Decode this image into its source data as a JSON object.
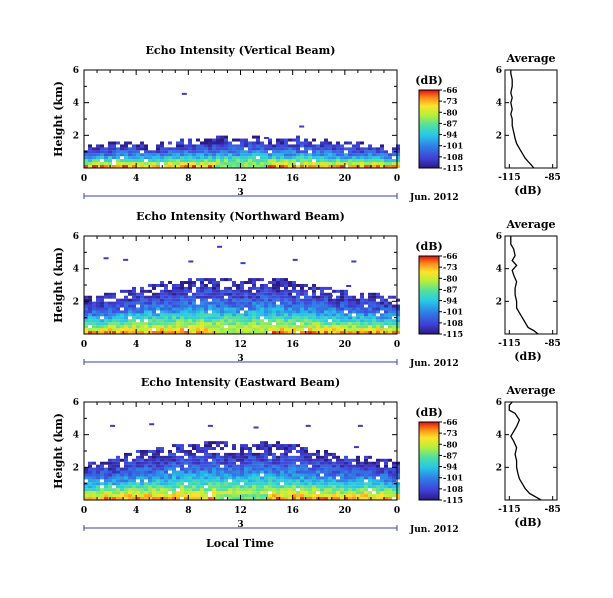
{
  "chart_data": [
    {
      "type": "heatmap",
      "title": "Echo Intensity (Vertical Beam)",
      "ylabel": "Height (km)",
      "x_ticks": [
        "0",
        "4",
        "8",
        "12",
        "16",
        "20",
        "0"
      ],
      "xlim": [
        0,
        24
      ],
      "y_ticks": [
        "2",
        "4",
        "6"
      ],
      "ylim": [
        0,
        6
      ],
      "date_tick": "3",
      "date_label": "Jun. 2012",
      "colorbar": {
        "unit": "(dB)",
        "ticks": [
          "-66",
          "-73",
          "-80",
          "-87",
          "-94",
          "-101",
          "-108",
          "-115"
        ]
      },
      "profile": {
        "title": "Average",
        "xlabel": "(dB)",
        "x_ticks": [
          "-115",
          "-85"
        ],
        "y_ticks": [
          "2",
          "4",
          "6"
        ],
        "xlim": [
          -118,
          -82
        ],
        "ylim": [
          0,
          6
        ],
        "points": [
          [
            -98,
            0.0
          ],
          [
            -100,
            0.2
          ],
          [
            -102,
            0.4
          ],
          [
            -104,
            0.6
          ],
          [
            -106,
            0.9
          ],
          [
            -108,
            1.2
          ],
          [
            -110,
            1.5
          ],
          [
            -111,
            1.8
          ],
          [
            -112,
            2.2
          ],
          [
            -113,
            2.6
          ],
          [
            -113,
            3.0
          ],
          [
            -114,
            3.3
          ],
          [
            -113,
            3.6
          ],
          [
            -114,
            4.0
          ],
          [
            -113,
            4.3
          ],
          [
            -114,
            4.6
          ],
          [
            -113,
            5.0
          ],
          [
            -113,
            5.4
          ],
          [
            -114,
            5.8
          ],
          [
            -114,
            6.0
          ]
        ]
      },
      "echo": {
        "top": [
          1.3,
          1.4,
          1.5,
          1.6,
          1.5,
          1.3,
          1.5,
          1.6,
          1.7,
          1.7,
          1.8,
          1.8,
          1.7,
          1.9,
          1.8,
          1.7,
          1.8,
          1.8,
          1.7,
          1.6,
          1.5,
          1.5,
          1.4,
          1.3,
          1.3
        ],
        "peak": -85,
        "specks": [
          [
            7.5,
            4.6
          ],
          [
            13.8,
            1.9
          ],
          [
            16.5,
            2.6
          ]
        ]
      }
    },
    {
      "type": "heatmap",
      "title": "Echo Intensity (Northward Beam)",
      "ylabel": "Height (km)",
      "x_ticks": [
        "0",
        "4",
        "8",
        "12",
        "16",
        "20",
        "0"
      ],
      "xlim": [
        0,
        24
      ],
      "y_ticks": [
        "2",
        "4",
        "6"
      ],
      "ylim": [
        0,
        6
      ],
      "date_tick": "3",
      "date_label": "Jun. 2012",
      "colorbar": {
        "unit": "(dB)",
        "ticks": [
          "-66",
          "-73",
          "-80",
          "-87",
          "-94",
          "-101",
          "-108",
          "-115"
        ]
      },
      "profile": {
        "title": "Average",
        "xlabel": "(dB)",
        "x_ticks": [
          "-115",
          "-85"
        ],
        "y_ticks": [
          "2",
          "4",
          "6"
        ],
        "xlim": [
          -118,
          -82
        ],
        "ylim": [
          0,
          6
        ],
        "points": [
          [
            -95,
            0.0
          ],
          [
            -98,
            0.2
          ],
          [
            -102,
            0.4
          ],
          [
            -104,
            0.7
          ],
          [
            -106,
            1.0
          ],
          [
            -108,
            1.3
          ],
          [
            -110,
            1.6
          ],
          [
            -110,
            2.0
          ],
          [
            -111,
            2.4
          ],
          [
            -111,
            2.8
          ],
          [
            -110,
            3.2
          ],
          [
            -112,
            3.6
          ],
          [
            -113,
            3.9
          ],
          [
            -110,
            4.2
          ],
          [
            -113,
            4.5
          ],
          [
            -111,
            4.8
          ],
          [
            -112,
            5.2
          ],
          [
            -114,
            5.5
          ],
          [
            -114,
            6.0
          ]
        ]
      },
      "echo": {
        "top": [
          2.2,
          2.3,
          2.4,
          2.6,
          2.8,
          3.0,
          3.1,
          3.2,
          3.3,
          3.3,
          3.4,
          3.3,
          3.2,
          3.3,
          3.4,
          3.3,
          3.2,
          3.0,
          2.9,
          2.7,
          2.6,
          2.5,
          2.4,
          2.3,
          2.2
        ],
        "peak": -82,
        "specks": [
          [
            1.5,
            4.7
          ],
          [
            3.0,
            4.6
          ],
          [
            8.0,
            4.5
          ],
          [
            12.0,
            4.4
          ],
          [
            16.0,
            4.6
          ],
          [
            20.5,
            4.5
          ],
          [
            10.2,
            5.4
          ],
          [
            18.7,
            2.4
          ],
          [
            20.1,
            3.0
          ]
        ]
      }
    },
    {
      "type": "heatmap",
      "title": "Echo Intensity (Eastward Beam)",
      "ylabel": "Height (km)",
      "x_ticks": [
        "0",
        "4",
        "8",
        "12",
        "16",
        "20",
        "0"
      ],
      "xlim": [
        0,
        24
      ],
      "y_ticks": [
        "2",
        "4",
        "6"
      ],
      "ylim": [
        0,
        6
      ],
      "date_tick": "3",
      "date_label": "Jun. 2012",
      "colorbar": {
        "unit": "(dB)",
        "ticks": [
          "-66",
          "-73",
          "-80",
          "-87",
          "-94",
          "-101",
          "-108",
          "-115"
        ]
      },
      "profile": {
        "title": "Average",
        "xlabel": "(dB)",
        "x_ticks": [
          "-115",
          "-85"
        ],
        "y_ticks": [
          "2",
          "4",
          "6"
        ],
        "xlim": [
          -118,
          -82
        ],
        "ylim": [
          0,
          6
        ],
        "points": [
          [
            -93,
            0.0
          ],
          [
            -97,
            0.2
          ],
          [
            -101,
            0.4
          ],
          [
            -104,
            0.7
          ],
          [
            -106,
            1.0
          ],
          [
            -108,
            1.3
          ],
          [
            -109,
            1.6
          ],
          [
            -110,
            2.0
          ],
          [
            -110,
            2.4
          ],
          [
            -111,
            2.8
          ],
          [
            -110,
            3.2
          ],
          [
            -112,
            3.6
          ],
          [
            -114,
            3.9
          ],
          [
            -112,
            4.2
          ],
          [
            -110,
            4.5
          ],
          [
            -108,
            4.9
          ],
          [
            -111,
            5.3
          ],
          [
            -115,
            5.5
          ],
          [
            -115,
            5.8
          ],
          [
            -113,
            6.0
          ]
        ]
      },
      "echo": {
        "top": [
          2.3,
          2.4,
          2.5,
          2.7,
          2.9,
          3.1,
          3.2,
          3.3,
          3.4,
          3.4,
          3.5,
          3.4,
          3.3,
          3.4,
          3.5,
          3.4,
          3.3,
          3.1,
          3.0,
          2.8,
          2.7,
          2.6,
          2.5,
          2.4,
          2.3
        ],
        "peak": -86,
        "specks": [
          [
            2.0,
            4.6
          ],
          [
            5.0,
            4.7
          ],
          [
            9.5,
            4.6
          ],
          [
            13.0,
            4.5
          ],
          [
            17.0,
            4.6
          ],
          [
            21.0,
            4.6
          ],
          [
            18.5,
            2.8
          ],
          [
            20.7,
            3.3
          ]
        ]
      }
    }
  ],
  "footer": {
    "xlabel": "Local Time"
  },
  "colors": {
    "frame": "#000000",
    "date_bar": "#3344aa"
  }
}
